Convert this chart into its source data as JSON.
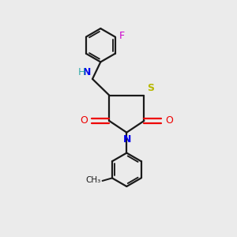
{
  "bg_color": "#ebebeb",
  "bond_color": "#1a1a1a",
  "S_color": "#b8b800",
  "N_color": "#0000ee",
  "O_color": "#ee0000",
  "F_color": "#cc00cc",
  "NH_N_color": "#0000ee",
  "NH_H_color": "#33aaaa",
  "figsize": [
    3.0,
    3.0
  ],
  "dpi": 100,
  "xlim": [
    0,
    10
  ],
  "ylim": [
    0,
    10
  ]
}
